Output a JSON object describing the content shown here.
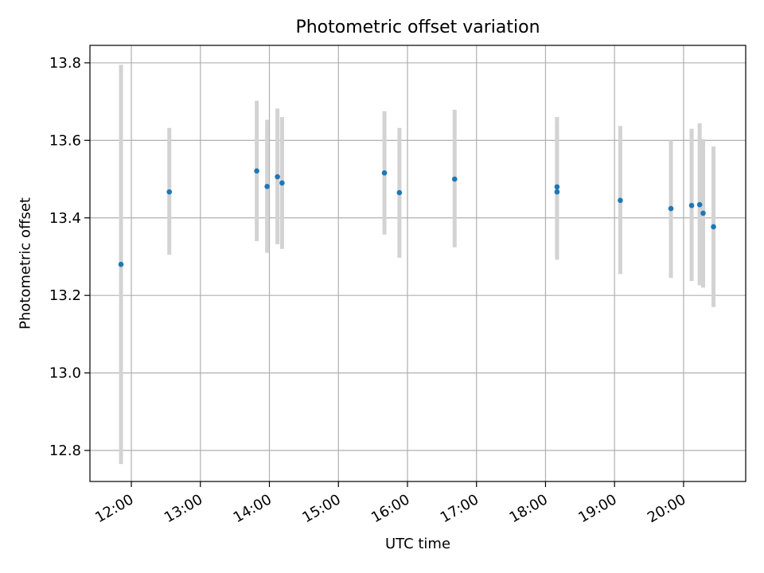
{
  "chart_data": {
    "type": "scatter",
    "title": "Photometric offset variation",
    "xlabel": "UTC time",
    "ylabel": "Photometric offset",
    "xlim": [
      "11:24",
      "20:54"
    ],
    "ylim": [
      12.72,
      13.845
    ],
    "grid": true,
    "x_ticks": [
      "12:00",
      "13:00",
      "14:00",
      "15:00",
      "16:00",
      "17:00",
      "18:00",
      "19:00",
      "20:00"
    ],
    "y_ticks": [
      "12.8",
      "13.0",
      "13.2",
      "13.4",
      "13.6",
      "13.8"
    ],
    "series": [
      {
        "marker_color": "#1f77b4",
        "errorbar_color": "#d3d3d3",
        "points": [
          {
            "x": "11:51",
            "y": 13.28,
            "ylow": 12.765,
            "yhigh": 13.795
          },
          {
            "x": "12:33",
            "y": 13.467,
            "ylow": 13.305,
            "yhigh": 13.632
          },
          {
            "x": "13:49",
            "y": 13.521,
            "ylow": 13.34,
            "yhigh": 13.702
          },
          {
            "x": "13:58",
            "y": 13.481,
            "ylow": 13.31,
            "yhigh": 13.653
          },
          {
            "x": "14:07",
            "y": 13.506,
            "ylow": 13.332,
            "yhigh": 13.682
          },
          {
            "x": "14:11",
            "y": 13.49,
            "ylow": 13.32,
            "yhigh": 13.66
          },
          {
            "x": "15:40",
            "y": 13.516,
            "ylow": 13.357,
            "yhigh": 13.675
          },
          {
            "x": "15:53",
            "y": 13.465,
            "ylow": 13.297,
            "yhigh": 13.632
          },
          {
            "x": "16:41",
            "y": 13.5,
            "ylow": 13.324,
            "yhigh": 13.679
          },
          {
            "x": "18:10",
            "y": 13.48,
            "ylow": 13.305,
            "yhigh": 13.66
          },
          {
            "x": "18:10",
            "y": 13.467,
            "ylow": 13.292,
            "yhigh": 13.642
          },
          {
            "x": "19:05",
            "y": 13.445,
            "ylow": 13.255,
            "yhigh": 13.637
          },
          {
            "x": "19:49",
            "y": 13.424,
            "ylow": 13.245,
            "yhigh": 13.6
          },
          {
            "x": "20:07",
            "y": 13.432,
            "ylow": 13.237,
            "yhigh": 13.63
          },
          {
            "x": "20:14",
            "y": 13.434,
            "ylow": 13.226,
            "yhigh": 13.644
          },
          {
            "x": "20:17",
            "y": 13.412,
            "ylow": 13.22,
            "yhigh": 13.603
          },
          {
            "x": "20:26",
            "y": 13.377,
            "ylow": 13.17,
            "yhigh": 13.584
          }
        ]
      }
    ]
  }
}
